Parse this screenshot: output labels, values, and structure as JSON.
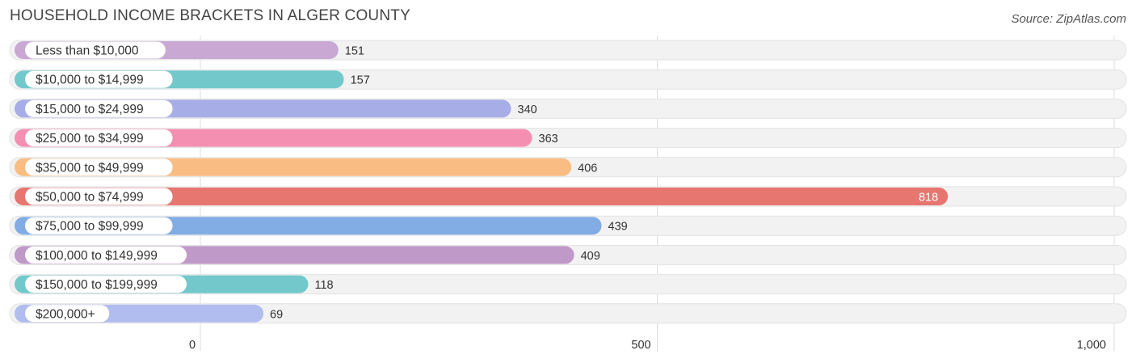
{
  "chart_data": {
    "type": "bar",
    "orientation": "horizontal",
    "title": "HOUSEHOLD INCOME BRACKETS IN ALGER COUNTY",
    "source": "Source: ZipAtlas.com",
    "categories": [
      "Less than $10,000",
      "$10,000 to $14,999",
      "$15,000 to $24,999",
      "$25,000 to $34,999",
      "$35,000 to $49,999",
      "$50,000 to $74,999",
      "$75,000 to $99,999",
      "$100,000 to $149,999",
      "$150,000 to $199,999",
      "$200,000+"
    ],
    "values": [
      151,
      157,
      340,
      363,
      406,
      818,
      439,
      409,
      118,
      69
    ],
    "value_labels": [
      "151",
      "157",
      "340",
      "363",
      "406",
      "818",
      "439",
      "409",
      "118",
      "69"
    ],
    "colors": [
      "#c9a8d4",
      "#72c8cb",
      "#a7ade6",
      "#f48fb1",
      "#f9bd84",
      "#e6766f",
      "#82ade4",
      "#bf99c8",
      "#72c8cb",
      "#b1bcef"
    ],
    "xlim": [
      0,
      1000
    ],
    "xticks": [
      0,
      500,
      1000
    ],
    "xtick_labels": [
      "0",
      "500",
      "1,000"
    ],
    "grid": true,
    "highlight_index": 5
  }
}
